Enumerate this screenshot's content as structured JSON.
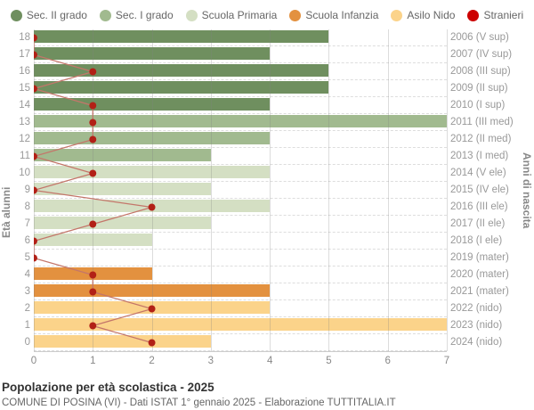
{
  "legend": {
    "items": [
      {
        "label": "Sec. II grado",
        "color": "#6f8f5f"
      },
      {
        "label": "Sec. I grado",
        "color": "#a1ba8f"
      },
      {
        "label": "Scuola Primaria",
        "color": "#d4dfc3"
      },
      {
        "label": "Scuola Infanzia",
        "color": "#e3913f"
      },
      {
        "label": "Asilo Nido",
        "color": "#fbd38a"
      },
      {
        "label": "Stranieri",
        "color": "#cc0000"
      }
    ]
  },
  "chart_data": {
    "type": "bar",
    "orientation": "horizontal",
    "title": "Popolazione per età scolastica - 2025",
    "subtitle": "COMUNE DI POSINA (VI) - Dati ISTAT 1° gennaio 2025 - Elaborazione TUTTITALIA.IT",
    "ylabel_left": "Età alunni",
    "ylabel_right": "Anni di nascita",
    "xlim": [
      0,
      7
    ],
    "x_ticks": [
      0,
      1,
      2,
      3,
      4,
      5,
      6,
      7
    ],
    "grid": true,
    "legend_position": "top",
    "category_colors": {
      "sec2": "#6f8f5f",
      "sec1": "#a1ba8f",
      "primaria": "#d4dfc3",
      "infanzia": "#e3913f",
      "nido": "#fbd38a"
    },
    "stranieri_dot_color": "#b22016",
    "stranieri_line_color": "#c4766a",
    "rows": [
      {
        "age": 18,
        "birth": "2006 (V sup)",
        "value": 5,
        "category": "sec2",
        "stranieri": 0
      },
      {
        "age": 17,
        "birth": "2007 (IV sup)",
        "value": 4,
        "category": "sec2",
        "stranieri": 0
      },
      {
        "age": 16,
        "birth": "2008 (III sup)",
        "value": 5,
        "category": "sec2",
        "stranieri": 1
      },
      {
        "age": 15,
        "birth": "2009 (II sup)",
        "value": 5,
        "category": "sec2",
        "stranieri": 0
      },
      {
        "age": 14,
        "birth": "2010 (I sup)",
        "value": 4,
        "category": "sec2",
        "stranieri": 1
      },
      {
        "age": 13,
        "birth": "2011 (III med)",
        "value": 7,
        "category": "sec1",
        "stranieri": 1
      },
      {
        "age": 12,
        "birth": "2012 (II med)",
        "value": 4,
        "category": "sec1",
        "stranieri": 1
      },
      {
        "age": 11,
        "birth": "2013 (I med)",
        "value": 3,
        "category": "sec1",
        "stranieri": 0
      },
      {
        "age": 10,
        "birth": "2014 (V ele)",
        "value": 4,
        "category": "primaria",
        "stranieri": 1
      },
      {
        "age": 9,
        "birth": "2015 (IV ele)",
        "value": 3,
        "category": "primaria",
        "stranieri": 0
      },
      {
        "age": 8,
        "birth": "2016 (III ele)",
        "value": 4,
        "category": "primaria",
        "stranieri": 2
      },
      {
        "age": 7,
        "birth": "2017 (II ele)",
        "value": 3,
        "category": "primaria",
        "stranieri": 1
      },
      {
        "age": 6,
        "birth": "2018 (I ele)",
        "value": 2,
        "category": "primaria",
        "stranieri": 0
      },
      {
        "age": 5,
        "birth": "2019 (mater)",
        "value": 0,
        "category": "infanzia",
        "stranieri": 0
      },
      {
        "age": 4,
        "birth": "2020 (mater)",
        "value": 2,
        "category": "infanzia",
        "stranieri": 1
      },
      {
        "age": 3,
        "birth": "2021 (mater)",
        "value": 4,
        "category": "infanzia",
        "stranieri": 1
      },
      {
        "age": 2,
        "birth": "2022 (nido)",
        "value": 4,
        "category": "nido",
        "stranieri": 2
      },
      {
        "age": 1,
        "birth": "2023 (nido)",
        "value": 7,
        "category": "nido",
        "stranieri": 1
      },
      {
        "age": 0,
        "birth": "2024 (nido)",
        "value": 3,
        "category": "nido",
        "stranieri": 2
      }
    ]
  },
  "footer": {
    "title": "Popolazione per età scolastica - 2025",
    "subtitle": "COMUNE DI POSINA (VI) - Dati ISTAT 1° gennaio 2025 - Elaborazione TUTTITALIA.IT"
  }
}
